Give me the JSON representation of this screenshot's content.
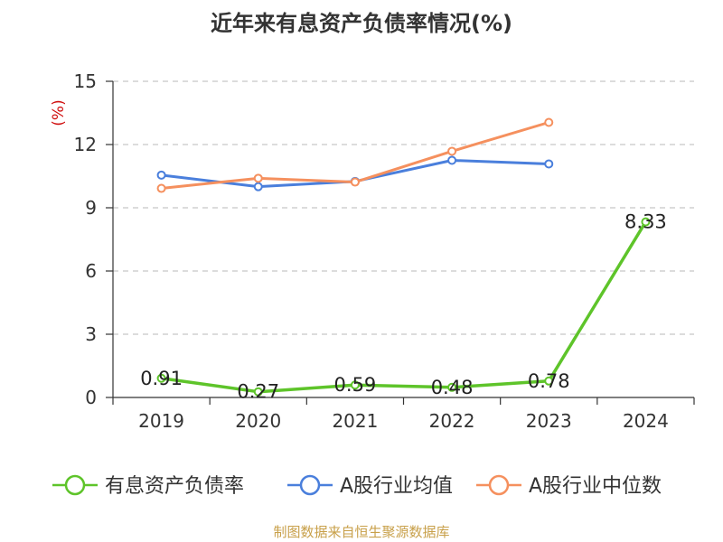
{
  "chart_data": {
    "type": "line",
    "title": "近年来有息资产负债率情况(%)",
    "ylabel": "(%)",
    "categories": [
      "2019",
      "2020",
      "2021",
      "2022",
      "2023",
      "2024"
    ],
    "ylim": [
      0,
      15
    ],
    "yticks": [
      0,
      3,
      6,
      9,
      12,
      15
    ],
    "grid": "horizontal-dashed",
    "legend_position": "bottom",
    "series": [
      {
        "name": "有息资产负债率",
        "color": "#5ec42a",
        "values": [
          0.91,
          0.27,
          0.59,
          0.48,
          0.78,
          8.33
        ],
        "labels": [
          "0.91",
          "0.27",
          "0.59",
          "0.48",
          "0.78",
          "8.33"
        ]
      },
      {
        "name": "A股行业均值",
        "color": "#4a7fdc",
        "values": [
          10.55,
          10.0,
          10.25,
          11.25,
          11.08,
          null
        ]
      },
      {
        "name": "A股行业中位数",
        "color": "#f5905e",
        "values": [
          9.92,
          10.4,
          10.22,
          11.68,
          13.05,
          null
        ]
      }
    ]
  },
  "source": "制图数据来自恒生聚源数据库"
}
